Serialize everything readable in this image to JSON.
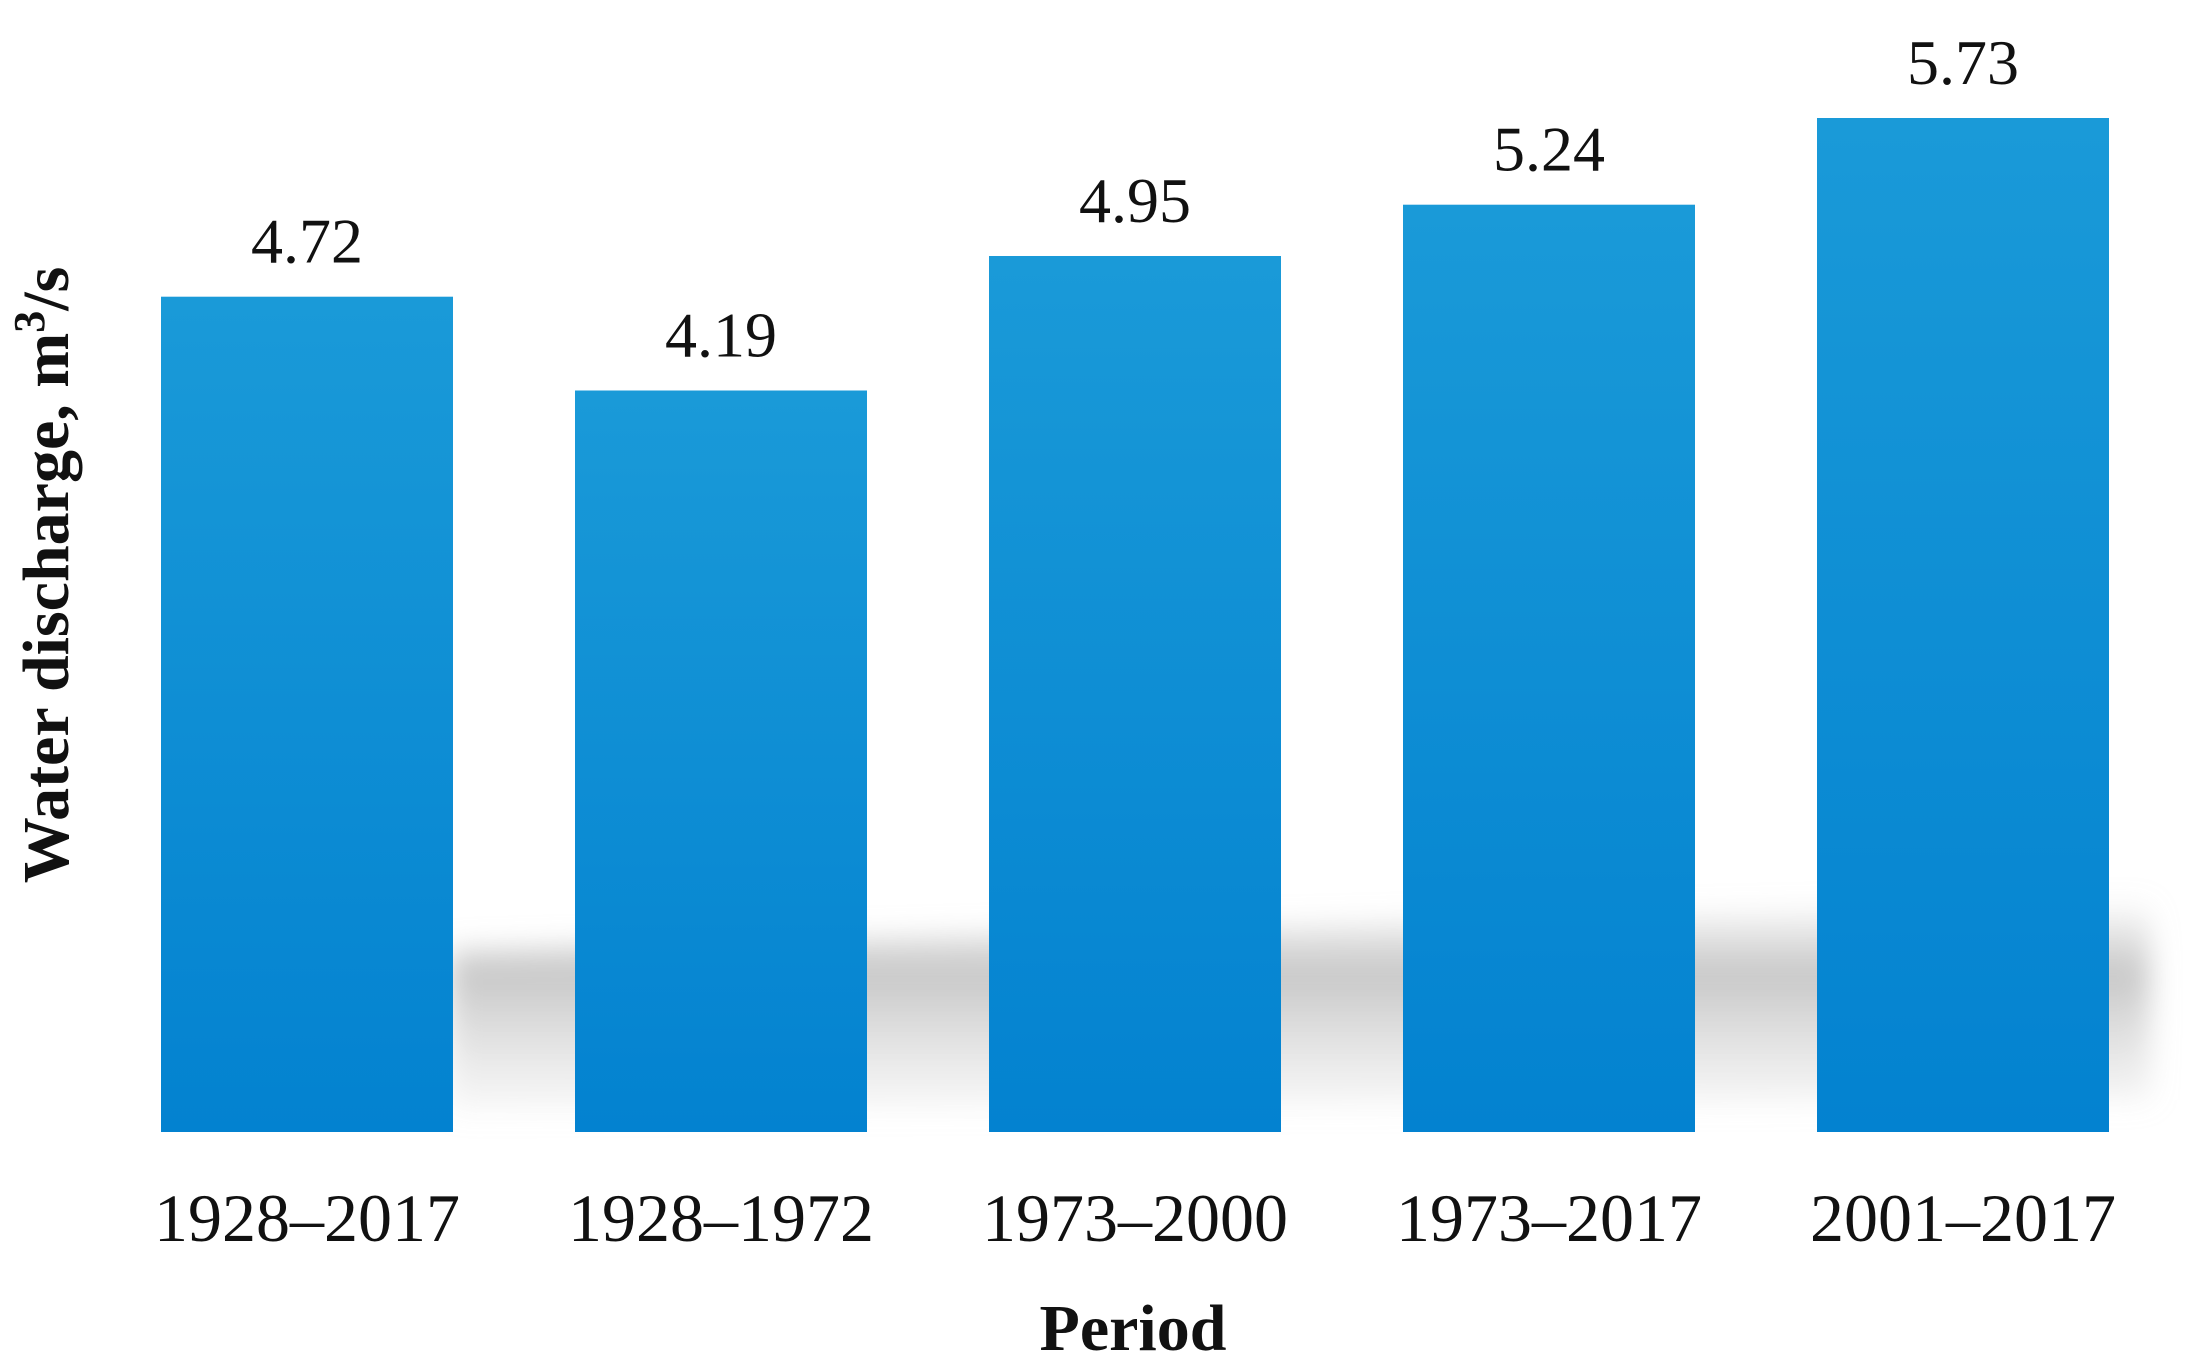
{
  "chart_data": {
    "type": "bar",
    "title": "",
    "xlabel": "Period",
    "ylabel": "Water discharge, m",
    "ylabel_superscript": "3",
    "ylabel_suffix": "/s",
    "categories": [
      "1928–2017",
      "1928–1972",
      "1973–2000",
      "1973–2017",
      "2001–2017"
    ],
    "values": [
      4.72,
      4.19,
      4.95,
      5.24,
      5.73
    ],
    "data_labels": [
      "4.72",
      "4.19",
      "4.95",
      "5.24",
      "5.73"
    ],
    "grid": false,
    "legend": "none",
    "colors": {
      "bar_top": "#1a9ad8",
      "bar_bottom": "#0382d0",
      "shadow": "#bdbdbd"
    }
  }
}
